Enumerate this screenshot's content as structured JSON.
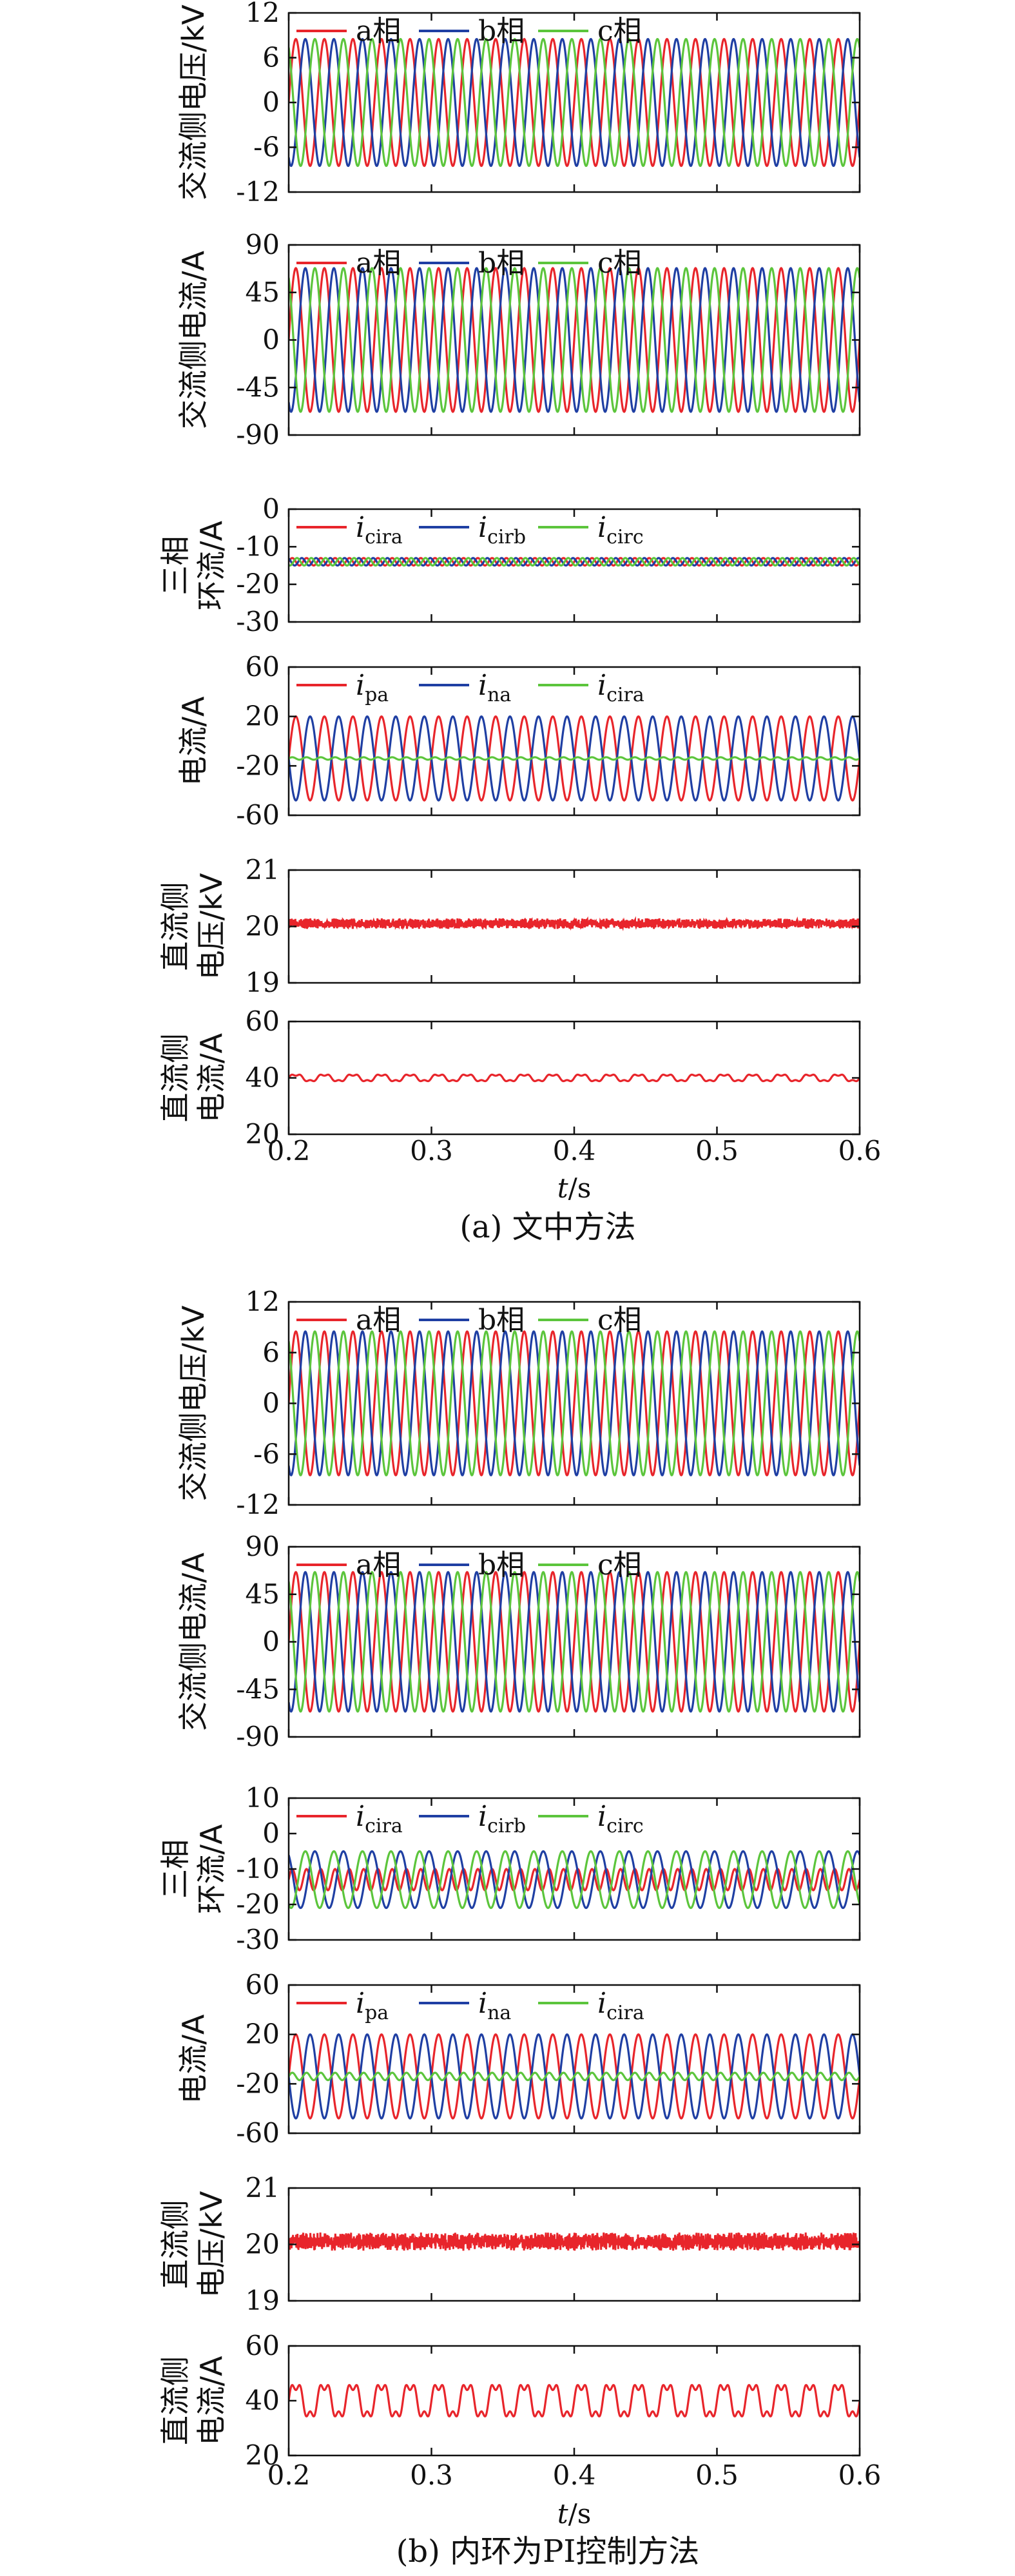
{
  "figure": {
    "colors": {
      "red": "#e8252b",
      "blue": "#1f3fa3",
      "green": "#5cc53c"
    },
    "captions": [
      "(a) 文中方法",
      "(b) 内环为PI控制方法"
    ],
    "x_axis": {
      "label_italic": "t",
      "label_unit": "/s",
      "ticks": [
        "0.2",
        "0.3",
        "0.4",
        "0.5",
        "0.6"
      ]
    }
  },
  "chart_data": [
    {
      "group": "a",
      "type": "line",
      "ylabel_lines": [
        "交流侧电压/kV"
      ],
      "ylim": [
        -12,
        12
      ],
      "yticks": [
        "12",
        "6",
        "0",
        "-6",
        "-12"
      ],
      "xlim": [
        0.2,
        0.6
      ],
      "legend": [
        {
          "main": "a相",
          "sub": ""
        },
        {
          "main": "b相",
          "sub": ""
        },
        {
          "main": "c相",
          "sub": ""
        }
      ],
      "series": [
        {
          "color": "#e8252b",
          "kind": "sine",
          "freq": 50,
          "amp": 8.5,
          "offset": 0,
          "phase_deg": 0
        },
        {
          "color": "#1f3fa3",
          "kind": "sine",
          "freq": 50,
          "amp": 8.5,
          "offset": 0,
          "phase_deg": -120
        },
        {
          "color": "#5cc53c",
          "kind": "sine",
          "freq": 50,
          "amp": 8.5,
          "offset": 0,
          "phase_deg": 120
        }
      ]
    },
    {
      "group": "a",
      "type": "line",
      "ylabel_lines": [
        "交流侧电流/A"
      ],
      "ylim": [
        -90,
        90
      ],
      "yticks": [
        "90",
        "45",
        "0",
        "-45",
        "-90"
      ],
      "xlim": [
        0.2,
        0.6
      ],
      "legend": [
        {
          "main": "a相",
          "sub": ""
        },
        {
          "main": "b相",
          "sub": ""
        },
        {
          "main": "c相",
          "sub": ""
        }
      ],
      "series": [
        {
          "color": "#e8252b",
          "kind": "sine",
          "freq": 50,
          "amp": 68,
          "offset": 0,
          "phase_deg": 0
        },
        {
          "color": "#1f3fa3",
          "kind": "sine",
          "freq": 50,
          "amp": 68,
          "offset": 0,
          "phase_deg": -120
        },
        {
          "color": "#5cc53c",
          "kind": "sine",
          "freq": 50,
          "amp": 68,
          "offset": 0,
          "phase_deg": 120
        }
      ]
    },
    {
      "group": "a",
      "type": "line",
      "ylabel_lines": [
        "三相",
        "环流/A"
      ],
      "ylim": [
        -30,
        0
      ],
      "yticks": [
        "0",
        "-10",
        "-20",
        "-30"
      ],
      "xlim": [
        0.2,
        0.6
      ],
      "legend": [
        {
          "main": "i",
          "sub": "cira"
        },
        {
          "main": "i",
          "sub": "cirb"
        },
        {
          "main": "i",
          "sub": "circ"
        }
      ],
      "series": [
        {
          "color": "#e8252b",
          "kind": "sine",
          "freq": 100,
          "amp": 1,
          "offset": -14,
          "phase_deg": 0
        },
        {
          "color": "#1f3fa3",
          "kind": "sine",
          "freq": 100,
          "amp": 1,
          "offset": -14,
          "phase_deg": 120
        },
        {
          "color": "#5cc53c",
          "kind": "sine",
          "freq": 100,
          "amp": 1,
          "offset": -14,
          "phase_deg": 240
        }
      ]
    },
    {
      "group": "a",
      "type": "line",
      "ylabel_lines": [
        "电流/A"
      ],
      "ylim": [
        -60,
        60
      ],
      "yticks": [
        "60",
        "20",
        "-20",
        "-60"
      ],
      "xlim": [
        0.2,
        0.6
      ],
      "legend": [
        {
          "main": "i",
          "sub": "pa"
        },
        {
          "main": "i",
          "sub": "na"
        },
        {
          "main": "i",
          "sub": "cira"
        }
      ],
      "series": [
        {
          "color": "#e8252b",
          "kind": "sine",
          "freq": 50,
          "amp": 34,
          "offset": -14,
          "phase_deg": 0
        },
        {
          "color": "#1f3fa3",
          "kind": "sine",
          "freq": 50,
          "amp": 34,
          "offset": -14,
          "phase_deg": 180
        },
        {
          "color": "#5cc53c",
          "kind": "sine",
          "freq": 100,
          "amp": 1,
          "offset": -14,
          "phase_deg": 0
        }
      ]
    },
    {
      "group": "a",
      "type": "line",
      "ylabel_lines": [
        "直流侧",
        "电压/kV"
      ],
      "ylim": [
        19,
        21
      ],
      "yticks": [
        "21",
        "20",
        "19"
      ],
      "xlim": [
        0.2,
        0.6
      ],
      "legend": [],
      "series": [
        {
          "color": "#e8252b",
          "kind": "noise",
          "freq": 2000,
          "amp": 0.07,
          "offset": 20.05,
          "phase_deg": 0
        }
      ]
    },
    {
      "group": "a",
      "type": "line",
      "ylabel_lines": [
        "直流侧",
        "电流/A"
      ],
      "ylim": [
        20,
        60
      ],
      "yticks": [
        "60",
        "40",
        "20"
      ],
      "xlim": [
        0.2,
        0.6
      ],
      "legend": [],
      "series": [
        {
          "color": "#e8252b",
          "kind": "sine",
          "freq": 50,
          "amp": 1.2,
          "offset": 40,
          "phase_deg": 0
        }
      ]
    },
    {
      "group": "b",
      "type": "line",
      "ylabel_lines": [
        "交流侧电压/kV"
      ],
      "ylim": [
        -12,
        12
      ],
      "yticks": [
        "12",
        "6",
        "0",
        "-6",
        "-12"
      ],
      "xlim": [
        0.2,
        0.6
      ],
      "legend": [
        {
          "main": "a相",
          "sub": ""
        },
        {
          "main": "b相",
          "sub": ""
        },
        {
          "main": "c相",
          "sub": ""
        }
      ],
      "series": [
        {
          "color": "#e8252b",
          "kind": "sine",
          "freq": 50,
          "amp": 8.5,
          "offset": 0,
          "phase_deg": 0
        },
        {
          "color": "#1f3fa3",
          "kind": "sine",
          "freq": 50,
          "amp": 8.5,
          "offset": 0,
          "phase_deg": -120
        },
        {
          "color": "#5cc53c",
          "kind": "sine",
          "freq": 50,
          "amp": 8.5,
          "offset": 0,
          "phase_deg": 120
        }
      ]
    },
    {
      "group": "b",
      "type": "line",
      "ylabel_lines": [
        "交流侧电流/A"
      ],
      "ylim": [
        -90,
        90
      ],
      "yticks": [
        "90",
        "45",
        "0",
        "-45",
        "-90"
      ],
      "xlim": [
        0.2,
        0.6
      ],
      "legend": [
        {
          "main": "a相",
          "sub": ""
        },
        {
          "main": "b相",
          "sub": ""
        },
        {
          "main": "c相",
          "sub": ""
        }
      ],
      "series": [
        {
          "color": "#e8252b",
          "kind": "sine",
          "freq": 50,
          "amp": 66,
          "offset": 0,
          "phase_deg": 0
        },
        {
          "color": "#1f3fa3",
          "kind": "sine",
          "freq": 50,
          "amp": 66,
          "offset": 0,
          "phase_deg": -120
        },
        {
          "color": "#5cc53c",
          "kind": "sine",
          "freq": 50,
          "amp": 66,
          "offset": 0,
          "phase_deg": 120
        }
      ]
    },
    {
      "group": "b",
      "type": "line",
      "ylabel_lines": [
        "三相",
        "环流/A"
      ],
      "ylim": [
        -30,
        10
      ],
      "yticks": [
        "10",
        "0",
        "-10",
        "-20",
        "-30"
      ],
      "xlim": [
        0.2,
        0.6
      ],
      "legend": [
        {
          "main": "i",
          "sub": "cira"
        },
        {
          "main": "i",
          "sub": "cirb"
        },
        {
          "main": "i",
          "sub": "circ"
        }
      ],
      "series": [
        {
          "color": "#e8252b",
          "kind": "sine",
          "freq": 100,
          "amp": 3,
          "offset": -13,
          "phase_deg": 0
        },
        {
          "color": "#1f3fa3",
          "kind": "sine",
          "freq": 50,
          "amp": 8,
          "offset": -13,
          "phase_deg": 120
        },
        {
          "color": "#5cc53c",
          "kind": "sine",
          "freq": 50,
          "amp": 8,
          "offset": -13,
          "phase_deg": 240
        }
      ]
    },
    {
      "group": "b",
      "type": "line",
      "ylabel_lines": [
        "电流/A"
      ],
      "ylim": [
        -60,
        60
      ],
      "yticks": [
        "60",
        "20",
        "-20",
        "-60"
      ],
      "xlim": [
        0.2,
        0.6
      ],
      "legend": [
        {
          "main": "i",
          "sub": "pa"
        },
        {
          "main": "i",
          "sub": "na"
        },
        {
          "main": "i",
          "sub": "cira"
        }
      ],
      "series": [
        {
          "color": "#e8252b",
          "kind": "sine",
          "freq": 50,
          "amp": 34,
          "offset": -14,
          "phase_deg": 0
        },
        {
          "color": "#1f3fa3",
          "kind": "sine",
          "freq": 50,
          "amp": 34,
          "offset": -14,
          "phase_deg": 180
        },
        {
          "color": "#5cc53c",
          "kind": "sine",
          "freq": 100,
          "amp": 3,
          "offset": -14,
          "phase_deg": 0
        }
      ]
    },
    {
      "group": "b",
      "type": "line",
      "ylabel_lines": [
        "直流侧",
        "电压/kV"
      ],
      "ylim": [
        19,
        21
      ],
      "yticks": [
        "21",
        "20",
        "19"
      ],
      "xlim": [
        0.2,
        0.6
      ],
      "legend": [],
      "series": [
        {
          "color": "#e8252b",
          "kind": "noise",
          "freq": 2000,
          "amp": 0.12,
          "offset": 20.05,
          "phase_deg": 0
        }
      ]
    },
    {
      "group": "b",
      "type": "line",
      "ylabel_lines": [
        "直流侧",
        "电流/A"
      ],
      "ylim": [
        20,
        60
      ],
      "yticks": [
        "60",
        "40",
        "20"
      ],
      "xlim": [
        0.2,
        0.6
      ],
      "legend": [],
      "series": [
        {
          "color": "#e8252b",
          "kind": "sine",
          "freq": 50,
          "amp": 6,
          "offset": 40,
          "phase_deg": 0
        }
      ]
    }
  ]
}
